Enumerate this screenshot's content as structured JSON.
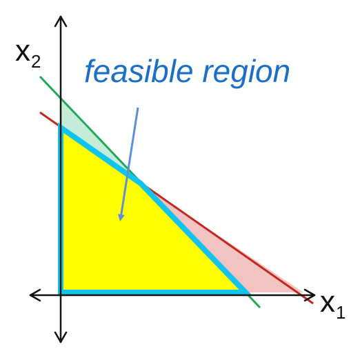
{
  "diagram": {
    "x1_axis_label": {
      "base": "x",
      "sub": "1"
    },
    "x2_axis_label": {
      "base": "x",
      "sub": "2"
    },
    "region_label": "feasible region",
    "colors": {
      "feasible_fill": "#ffff00",
      "feasible_outline": "#11c4ee",
      "green_line": "#1fa85a",
      "red_line": "#c0281e",
      "green_region": "#c5ecd9",
      "red_region": "#f3c3c3",
      "axis": "#111111",
      "label_color": "#1a6fc8",
      "arrow_color": "#5b8fd6"
    }
  }
}
